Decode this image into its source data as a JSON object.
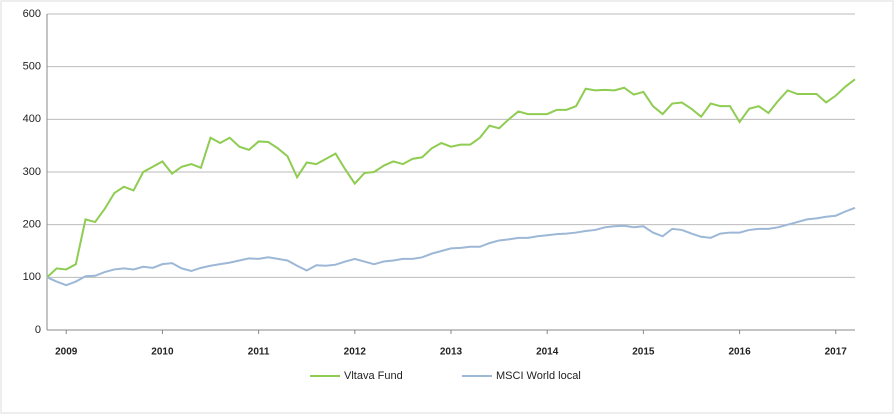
{
  "chart_data": {
    "type": "line",
    "x": [
      2008.8,
      2008.9,
      2009.0,
      2009.1,
      2009.2,
      2009.3,
      2009.4,
      2009.5,
      2009.6,
      2009.7,
      2009.8,
      2009.9,
      2010.0,
      2010.1,
      2010.2,
      2010.3,
      2010.4,
      2010.5,
      2010.6,
      2010.7,
      2010.8,
      2010.9,
      2011.0,
      2011.1,
      2011.2,
      2011.3,
      2011.4,
      2011.5,
      2011.6,
      2011.7,
      2011.8,
      2011.9,
      2012.0,
      2012.1,
      2012.2,
      2012.3,
      2012.4,
      2012.5,
      2012.6,
      2012.7,
      2012.8,
      2012.9,
      2013.0,
      2013.1,
      2013.2,
      2013.3,
      2013.4,
      2013.5,
      2013.6,
      2013.7,
      2013.8,
      2013.9,
      2014.0,
      2014.1,
      2014.2,
      2014.3,
      2014.4,
      2014.5,
      2014.6,
      2014.7,
      2014.8,
      2014.9,
      2015.0,
      2015.1,
      2015.2,
      2015.3,
      2015.4,
      2015.5,
      2015.6,
      2015.7,
      2015.8,
      2015.9,
      2016.0,
      2016.1,
      2016.2,
      2016.3,
      2016.4,
      2016.5,
      2016.6,
      2016.7,
      2016.8,
      2016.9,
      2017.0,
      2017.1,
      2017.2
    ],
    "series": [
      {
        "name": "Vltava Fund",
        "color": "#8fcc52",
        "values": [
          100,
          117,
          115,
          125,
          210,
          205,
          230,
          260,
          272,
          265,
          300,
          310,
          320,
          297,
          310,
          315,
          308,
          365,
          355,
          365,
          348,
          342,
          358,
          357,
          345,
          330,
          290,
          318,
          315,
          325,
          335,
          305,
          278,
          298,
          300,
          312,
          320,
          315,
          325,
          328,
          345,
          355,
          348,
          352,
          352,
          365,
          388,
          383,
          400,
          415,
          410,
          410,
          410,
          418,
          418,
          425,
          458,
          455,
          456,
          455,
          460,
          447,
          452,
          425,
          410,
          430,
          432,
          420,
          405,
          430,
          425,
          425,
          395,
          420,
          425,
          412,
          435,
          455,
          448,
          448,
          448,
          432,
          445,
          462,
          476
        ]
      },
      {
        "name": "MSCI World local",
        "color": "#9db8d6",
        "values": [
          100,
          92,
          85,
          92,
          102,
          103,
          110,
          115,
          117,
          115,
          120,
          118,
          125,
          127,
          117,
          112,
          118,
          122,
          125,
          128,
          132,
          136,
          135,
          138,
          135,
          132,
          122,
          113,
          123,
          122,
          124,
          130,
          135,
          130,
          125,
          130,
          132,
          135,
          135,
          138,
          145,
          150,
          155,
          156,
          158,
          158,
          165,
          170,
          172,
          175,
          175,
          178,
          180,
          182,
          183,
          185,
          188,
          190,
          195,
          197,
          198,
          195,
          197,
          185,
          178,
          192,
          190,
          183,
          177,
          175,
          183,
          185,
          185,
          190,
          192,
          192,
          195,
          200,
          205,
          210,
          212,
          215,
          217,
          225,
          232
        ]
      }
    ],
    "xlim": [
      2008.8,
      2017.2
    ],
    "xticks": [
      2009,
      2010,
      2011,
      2012,
      2013,
      2014,
      2015,
      2016,
      2017
    ],
    "ylim": [
      0,
      600
    ],
    "yticks": [
      0,
      100,
      200,
      300,
      400,
      500,
      600
    ],
    "grid": true,
    "legend": "bottom"
  }
}
